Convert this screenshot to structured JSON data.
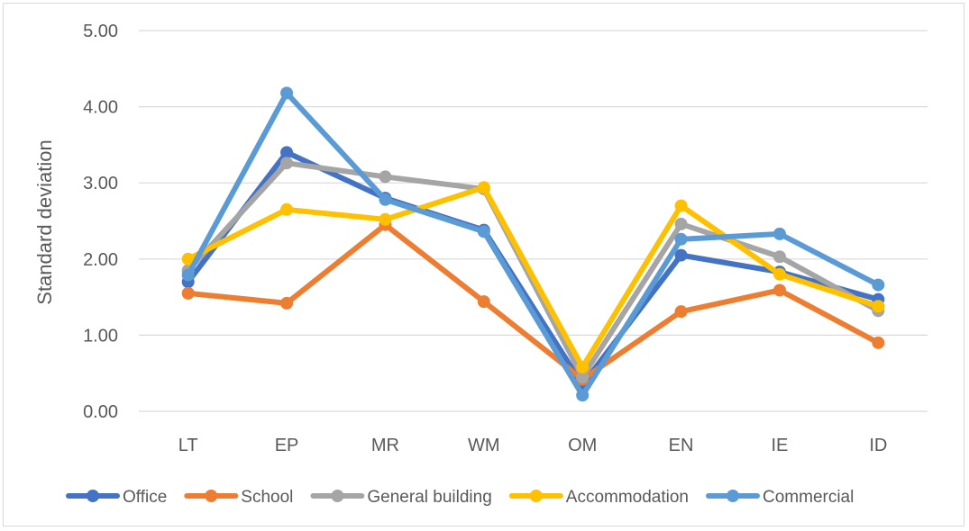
{
  "chart_data": {
    "type": "line",
    "title": "",
    "xlabel": "",
    "ylabel": "Standard deviation",
    "categories": [
      "LT",
      "EP",
      "MR",
      "WM",
      "OM",
      "EN",
      "IE",
      "ID"
    ],
    "ylim": [
      0,
      5
    ],
    "yticks": [
      "0.00",
      "1.00",
      "2.00",
      "3.00",
      "4.00",
      "5.00"
    ],
    "grid": true,
    "legend": "bottom",
    "series": [
      {
        "name": "Office",
        "color": "#4472c4",
        "values": [
          1.7,
          3.4,
          2.8,
          2.38,
          0.35,
          2.05,
          1.83,
          1.47
        ]
      },
      {
        "name": "School",
        "color": "#ed7d31",
        "values": [
          1.55,
          1.42,
          2.45,
          1.44,
          0.42,
          1.31,
          1.59,
          0.9
        ]
      },
      {
        "name": "General building",
        "color": "#a5a5a5",
        "values": [
          1.85,
          3.26,
          3.08,
          2.92,
          0.45,
          2.46,
          2.03,
          1.32
        ]
      },
      {
        "name": "Accommodation",
        "color": "#ffc000",
        "values": [
          2.0,
          2.65,
          2.52,
          2.94,
          0.58,
          2.7,
          1.8,
          1.38
        ]
      },
      {
        "name": "Commercial",
        "color": "#5b9bd5",
        "values": [
          1.79,
          4.18,
          2.78,
          2.36,
          0.21,
          2.26,
          2.33,
          1.66
        ]
      }
    ]
  }
}
